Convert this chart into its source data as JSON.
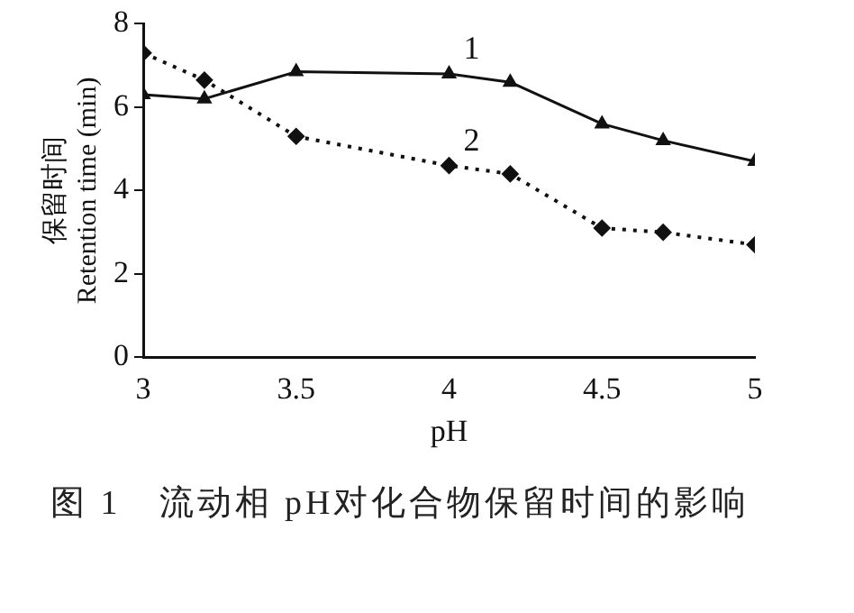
{
  "chart_data": {
    "type": "line",
    "xlabel": "pH",
    "ylabel": "保留时间\nRetention time (min)",
    "xlim": [
      3,
      5
    ],
    "xticks": [
      3,
      3.5,
      4,
      4.5,
      5
    ],
    "ylim": [
      0,
      8
    ],
    "yticks": [
      0,
      2,
      4,
      6,
      8
    ],
    "grid": false,
    "legend": false,
    "series": [
      {
        "name": "1",
        "color": "#111111",
        "marker": "triangle",
        "line_style": "solid",
        "x": [
          3,
          3.2,
          3.5,
          4,
          4.2,
          4.5,
          4.7,
          5
        ],
        "values": [
          6.3,
          6.2,
          6.85,
          6.8,
          6.6,
          5.6,
          5.2,
          4.7
        ]
      },
      {
        "name": "2",
        "color": "#111111",
        "marker": "diamond",
        "line_style": "dotted",
        "x": [
          3,
          3.2,
          3.5,
          4,
          4.2,
          4.5,
          4.7,
          5
        ],
        "values": [
          7.3,
          6.65,
          5.3,
          4.6,
          4.4,
          3.1,
          3.0,
          2.7
        ]
      }
    ],
    "annotations": [
      "图 1　流动相 pH对化合物保留时间的影响"
    ]
  }
}
